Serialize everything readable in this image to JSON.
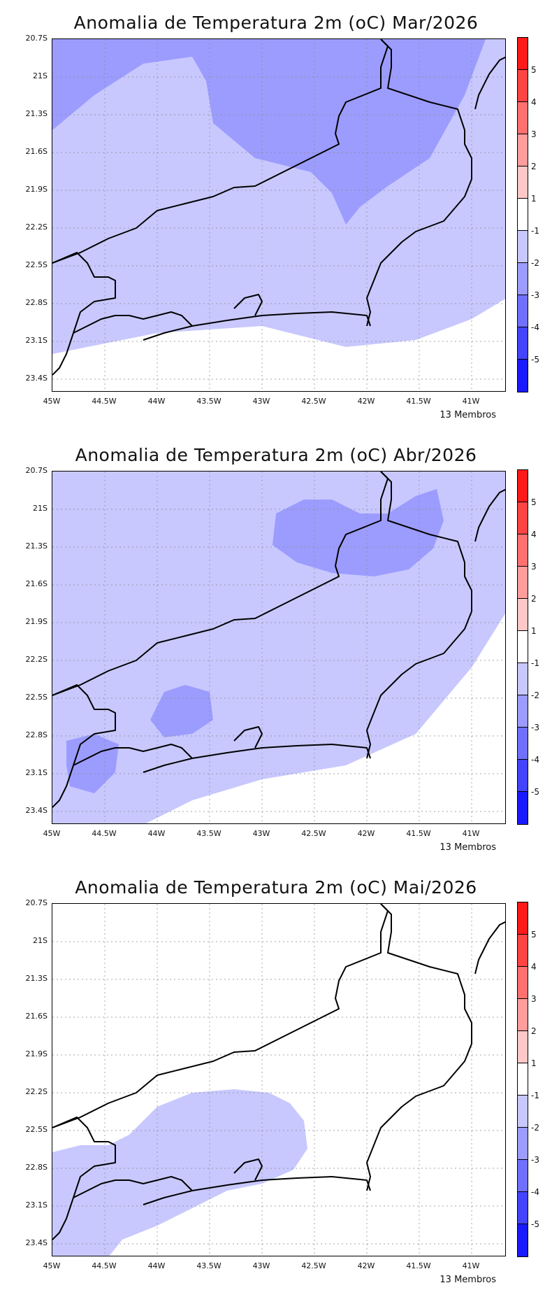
{
  "panels": [
    {
      "title": "Anomalia de Temperatura 2m (oC) Mar/2026",
      "members": "13 Membros",
      "month": "Mar/2026"
    },
    {
      "title": "Anomalia de Temperatura 2m (oC) Abr/2026",
      "members": "13 Membros",
      "month": "Abr/2026"
    },
    {
      "title": "Anomalia de Temperatura 2m (oC) Mai/2026",
      "members": "13 Membros",
      "month": "Mai/2026"
    }
  ],
  "axes": {
    "y_labels": [
      "20.7S",
      "21S",
      "21.3S",
      "21.6S",
      "21.9S",
      "22.2S",
      "22.5S",
      "22.8S",
      "23.1S",
      "23.4S"
    ],
    "x_labels": [
      "45W",
      "44.5W",
      "44W",
      "43.5W",
      "43W",
      "42.5W",
      "42W",
      "41.5W",
      "41W"
    ],
    "lat_range": [
      -23.45,
      -20.7
    ],
    "lon_range": [
      -45.0,
      -40.7
    ]
  },
  "colorbar": {
    "labels": [
      "5",
      "4",
      "3",
      "2",
      "1",
      "-1",
      "-2",
      "-3",
      "-4",
      "-5"
    ],
    "colors": [
      "#ff1a1a",
      "#ff4444",
      "#ff7070",
      "#ff9c9c",
      "#ffc8c8",
      "#ffffff",
      "#c8c8ff",
      "#9c9cff",
      "#7070ff",
      "#4444ff",
      "#1a1aff"
    ]
  }
}
